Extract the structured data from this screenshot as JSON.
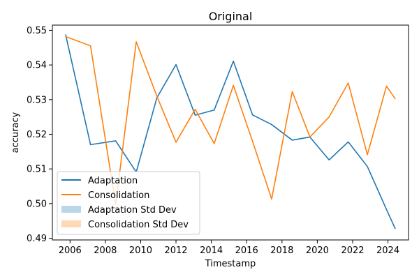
{
  "chart_data": {
    "type": "line",
    "title": "Original",
    "xlabel": "Timestamp",
    "ylabel": "accuracy",
    "x": [
      "2005-10-01",
      "2007-03-01",
      "2008-08-01",
      "2009-10-01",
      "2010-12-01",
      "2012-01-01",
      "2013-02-01",
      "2014-03-01",
      "2015-04-01",
      "2016-05-01",
      "2017-06-01",
      "2018-08-01",
      "2019-08-01",
      "2020-09-01",
      "2021-10-01",
      "2022-11-01",
      "2023-12-01",
      "2024-06-01"
    ],
    "series": [
      {
        "name": "Adaptation",
        "color": "#1f77b4",
        "values": [
          0.5488,
          0.517,
          0.5181,
          0.5091,
          0.5305,
          0.5401,
          0.5255,
          0.527,
          0.5411,
          0.5256,
          0.5228,
          0.5183,
          0.5192,
          0.5126,
          0.5178,
          0.5107,
          0.4983,
          0.4927
        ]
      },
      {
        "name": "Consolidation",
        "color": "#ff7f0e",
        "values": [
          0.5482,
          0.5455,
          0.4998,
          0.5467,
          0.531,
          0.5177,
          0.5272,
          0.5173,
          0.5341,
          0.518,
          0.5013,
          0.5323,
          0.5192,
          0.525,
          0.5348,
          0.5141,
          0.5339,
          0.5302
        ]
      }
    ],
    "std_series": [
      {
        "name": "Adaptation Std Dev",
        "color": "#1f77b4"
      },
      {
        "name": "Consolidation Std Dev",
        "color": "#ff7f0e"
      }
    ],
    "xlim": [
      "2005-01-01",
      "2025-03-01"
    ],
    "ylim": [
      0.4895,
      0.5515
    ],
    "xticks": [
      {
        "date": "2006-01-01",
        "label": "2006"
      },
      {
        "date": "2008-01-01",
        "label": "2008"
      },
      {
        "date": "2010-01-01",
        "label": "2010"
      },
      {
        "date": "2012-01-01",
        "label": "2012"
      },
      {
        "date": "2014-01-01",
        "label": "2014"
      },
      {
        "date": "2016-01-01",
        "label": "2016"
      },
      {
        "date": "2018-01-01",
        "label": "2018"
      },
      {
        "date": "2020-01-01",
        "label": "2020"
      },
      {
        "date": "2022-01-01",
        "label": "2022"
      },
      {
        "date": "2024-01-01",
        "label": "2024"
      }
    ],
    "yticks": [
      {
        "value": 0.49,
        "label": "0.49"
      },
      {
        "value": 0.5,
        "label": "0.50"
      },
      {
        "value": 0.51,
        "label": "0.51"
      },
      {
        "value": 0.52,
        "label": "0.52"
      },
      {
        "value": 0.53,
        "label": "0.53"
      },
      {
        "value": 0.54,
        "label": "0.54"
      },
      {
        "value": 0.55,
        "label": "0.55"
      }
    ],
    "grid": false,
    "legend_position": "lower-left"
  }
}
